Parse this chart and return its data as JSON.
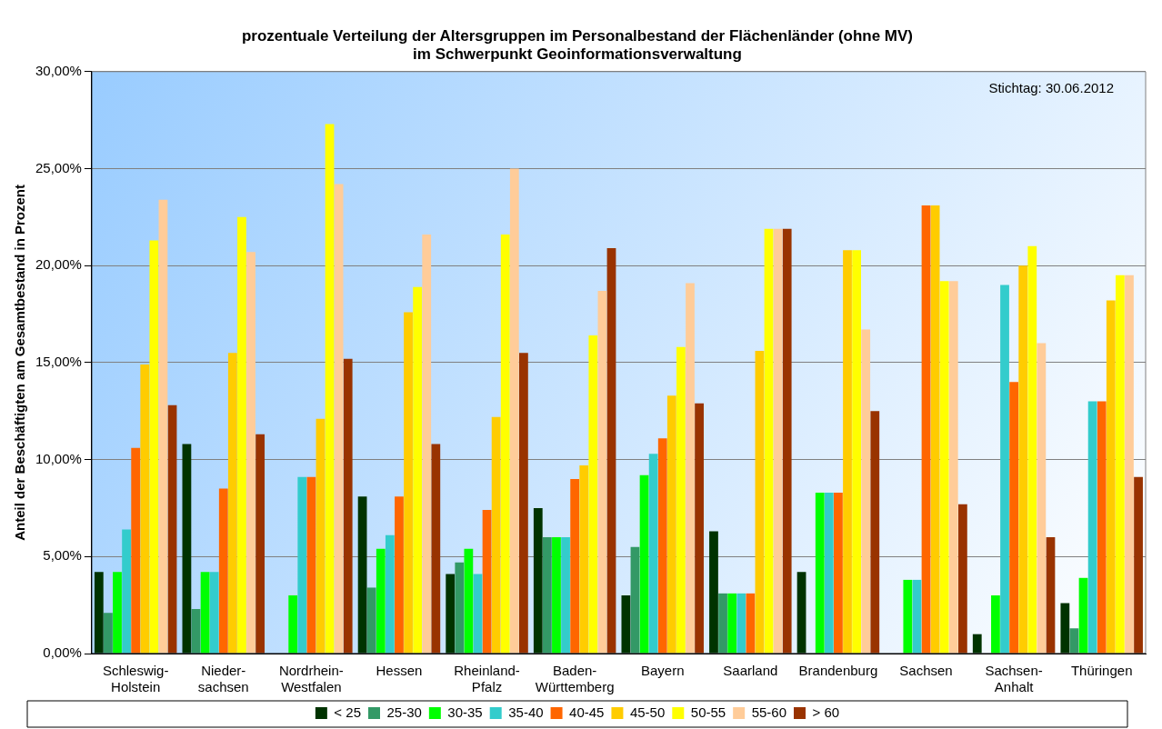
{
  "chart_data": {
    "type": "bar",
    "title": "prozentuale Verteilung der Altersgruppen im Personalbestand der Flächenländer (ohne MV)\nim Schwerpunkt Geoinformationsverwaltung",
    "ylabel": "Anteil der Beschäftigten am Gesamtbestand in Prozent",
    "annotations": [
      "Stichtag: 30.06.2012"
    ],
    "categories": [
      "Schleswig-\nHolstein",
      "Nieder-\nsachsen",
      "Nordrhein-\nWestfalen",
      "Hessen",
      "Rheinland-\nPfalz",
      "Baden-\nWürttemberg",
      "Bayern",
      "Saarland",
      "Brandenburg",
      "Sachsen",
      "Sachsen-\nAnhalt",
      "Thüringen"
    ],
    "series": [
      {
        "name": "< 25",
        "color": "#003300",
        "values": [
          4.2,
          10.8,
          0,
          8.1,
          4.1,
          7.5,
          3.0,
          6.3,
          4.2,
          0,
          1.0,
          2.6
        ]
      },
      {
        "name": "25-30",
        "color": "#339966",
        "values": [
          2.1,
          2.3,
          0,
          3.4,
          4.7,
          6.0,
          5.5,
          3.1,
          0,
          0,
          0,
          1.3
        ]
      },
      {
        "name": "30-35",
        "color": "#00ff00",
        "values": [
          4.2,
          4.2,
          3.0,
          5.4,
          5.4,
          6.0,
          9.2,
          3.1,
          8.3,
          3.8,
          3.0,
          3.9
        ]
      },
      {
        "name": "35-40",
        "color": "#33cccc",
        "values": [
          6.4,
          4.2,
          9.1,
          6.1,
          4.1,
          6.0,
          10.3,
          3.1,
          8.3,
          3.8,
          19.0,
          13.0
        ]
      },
      {
        "name": "40-45",
        "color": "#ff6600",
        "values": [
          10.6,
          8.5,
          9.1,
          8.1,
          7.4,
          9.0,
          11.1,
          3.1,
          8.3,
          23.1,
          14.0,
          13.0
        ]
      },
      {
        "name": "45-50",
        "color": "#ffcc00",
        "values": [
          14.9,
          15.5,
          12.1,
          17.6,
          12.2,
          9.7,
          13.3,
          15.6,
          20.8,
          23.1,
          20.0,
          18.2
        ]
      },
      {
        "name": "50-55",
        "color": "#ffff00",
        "values": [
          21.3,
          22.5,
          27.3,
          18.9,
          21.6,
          16.4,
          15.8,
          21.9,
          20.8,
          19.2,
          21.0,
          19.5
        ]
      },
      {
        "name": "55-60",
        "color": "#ffcc99",
        "values": [
          23.4,
          20.7,
          24.2,
          21.6,
          25.0,
          18.7,
          19.1,
          21.9,
          16.7,
          19.2,
          16.0,
          19.5
        ]
      },
      {
        "name": "> 60",
        "color": "#993300",
        "values": [
          12.8,
          11.3,
          15.2,
          10.8,
          15.5,
          20.9,
          12.9,
          21.9,
          12.5,
          7.7,
          6.0,
          9.1
        ]
      }
    ],
    "ylim": [
      0,
      30
    ],
    "yticks": [
      {
        "value": 0,
        "label": "0,00%"
      },
      {
        "value": 5,
        "label": "5,00%"
      },
      {
        "value": 10,
        "label": "10,00%"
      },
      {
        "value": 15,
        "label": "15,00%"
      },
      {
        "value": 20,
        "label": "20,00%"
      },
      {
        "value": 25,
        "label": "25,00%"
      },
      {
        "value": 30,
        "label": "30,00%"
      }
    ],
    "grid": "y",
    "legend": "bottom"
  }
}
